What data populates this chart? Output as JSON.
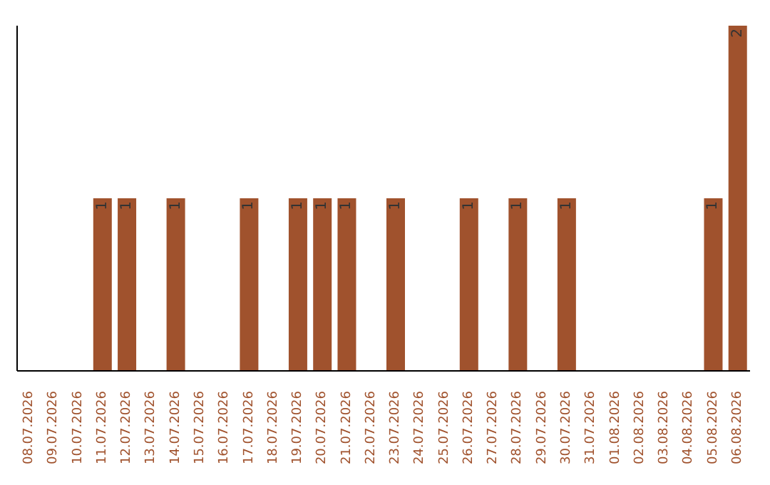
{
  "chart_data": {
    "type": "bar",
    "categories": [
      "08.07.2026",
      "09.07.2026",
      "10.07.2026",
      "11.07.2026",
      "12.07.2026",
      "13.07.2026",
      "14.07.2026",
      "15.07.2026",
      "16.07.2026",
      "17.07.2026",
      "18.07.2026",
      "19.07.2026",
      "20.07.2026",
      "21.07.2026",
      "22.07.2026",
      "23.07.2026",
      "24.07.2026",
      "25.07.2026",
      "26.07.2026",
      "27.07.2026",
      "28.07.2026",
      "29.07.2026",
      "30.07.2026",
      "31.07.2026",
      "01.08.2026",
      "02.08.2026",
      "03.08.2026",
      "04.08.2026",
      "05.08.2026",
      "06.08.2026"
    ],
    "values": [
      0,
      0,
      0,
      1,
      1,
      0,
      1,
      0,
      0,
      1,
      0,
      1,
      1,
      1,
      0,
      1,
      0,
      0,
      1,
      0,
      1,
      0,
      1,
      0,
      0,
      0,
      0,
      0,
      1,
      2
    ],
    "value_labels": [
      null,
      null,
      null,
      "1",
      "1",
      null,
      "1",
      null,
      null,
      "1",
      null,
      "1",
      "1",
      "1",
      null,
      "1",
      null,
      null,
      "1",
      null,
      "1",
      null,
      "1",
      null,
      null,
      null,
      null,
      null,
      "1",
      "2"
    ],
    "color": "#a0522d",
    "ylim": [
      0,
      2
    ],
    "tick_labels": "x",
    "grid": false,
    "legend": false
  }
}
